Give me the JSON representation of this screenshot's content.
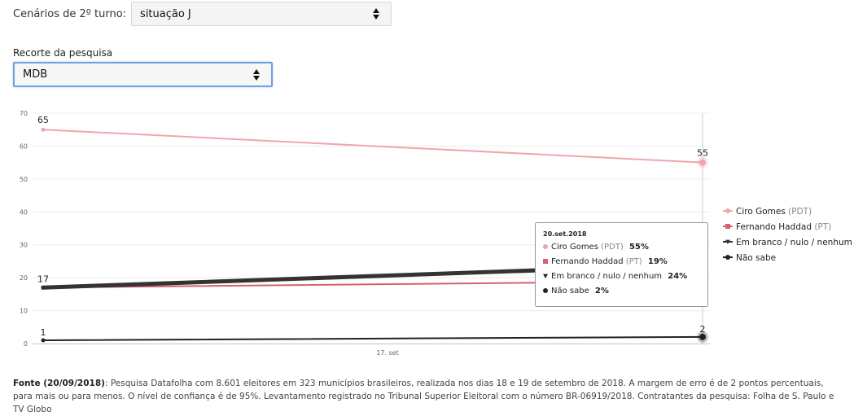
{
  "filters": {
    "turno_label": "Cenários de 2º turno:",
    "turno_value": "situação J",
    "recorte_label": "Recorte da pesquisa",
    "recorte_value": "MDB"
  },
  "chart_data": {
    "type": "line",
    "x": [
      "17.set",
      "20.set.2018"
    ],
    "xtick_labels": [
      "17. set"
    ],
    "ylim": [
      0,
      70
    ],
    "yticks": [
      0,
      10,
      20,
      30,
      40,
      50,
      60,
      70
    ],
    "grid": true,
    "legend_position": "right",
    "series": [
      {
        "name": "Ciro Gomes",
        "party": "(PDT)",
        "values": [
          65,
          55
        ],
        "color": "#f0a5ab",
        "marker": "circle",
        "stroke_width": 2
      },
      {
        "name": "Fernando Haddad",
        "party": "(PT)",
        "values": [
          17,
          19
        ],
        "color": "#d46070",
        "marker": "square",
        "stroke_width": 2
      },
      {
        "name": "Em branco / nulo / nenhum",
        "party": "",
        "values": [
          17,
          24
        ],
        "color": "#333333",
        "marker": "triangle-down",
        "stroke_width": 5
      },
      {
        "name": "Não sabe",
        "party": "",
        "values": [
          1,
          2
        ],
        "color": "#222222",
        "marker": "circle",
        "stroke_width": 2
      }
    ],
    "data_labels": [
      {
        "series": 0,
        "point": 0,
        "text": "65"
      },
      {
        "series": 0,
        "point": 1,
        "text": "55"
      },
      {
        "series": 2,
        "point": 0,
        "text": "17"
      },
      {
        "series": 2,
        "point": 1,
        "text": "24"
      },
      {
        "series": 1,
        "point": 1,
        "text": "19"
      },
      {
        "series": 3,
        "point": 0,
        "text": "1"
      },
      {
        "series": 3,
        "point": 1,
        "text": "2"
      }
    ],
    "tooltip": {
      "title": "20.set.2018",
      "rows": [
        {
          "name": "Ciro Gomes",
          "party": "(PDT)",
          "value": "55%",
          "color": "#f0a5ab",
          "marker": "circle"
        },
        {
          "name": "Fernando Haddad",
          "party": "(PT)",
          "value": "19%",
          "color": "#d46070",
          "marker": "square"
        },
        {
          "name": "Em branco / nulo / nenhum",
          "party": "",
          "value": "24%",
          "color": "#222222",
          "marker": "triangle-down"
        },
        {
          "name": "Não sabe",
          "party": "",
          "value": "2%",
          "color": "#222222",
          "marker": "circle"
        }
      ]
    }
  },
  "footer": {
    "source_label": "Fonte (20/09/2018)",
    "text": ": Pesquisa Datafolha com 8.601 eleitores em 323 municípios brasileiros, realizada nos dias 18 e 19 de setembro de 2018. A margem de erro é de 2 pontos percentuais, para mais ou para menos. O nível de confiança é de 95%. Levantamento registrado no Tribunal Superior Eleitoral com o número BR-06919/2018. Contratantes da pesquisa: Folha de S. Paulo e TV Globo"
  }
}
